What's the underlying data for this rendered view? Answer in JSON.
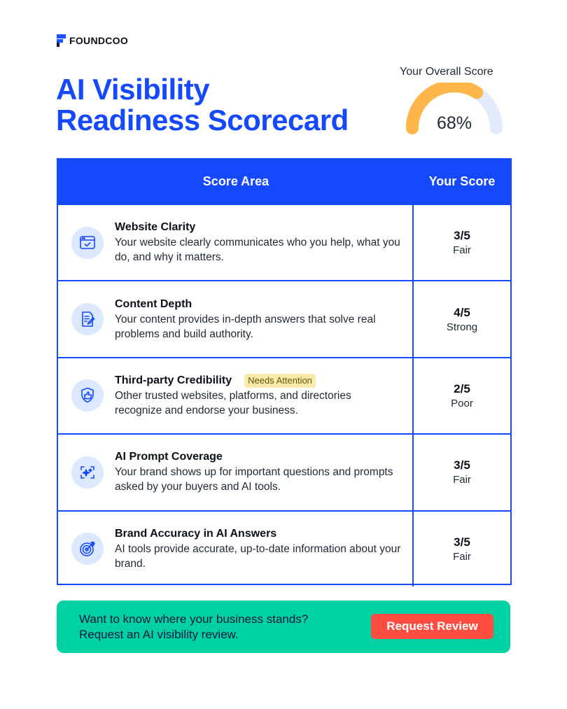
{
  "brand": {
    "name": "FOUNDCOO"
  },
  "title": {
    "line1": "AI Visibility",
    "line2": "Readiness Scorecard"
  },
  "overall": {
    "label": "Your Overall Score",
    "value_text": "68%",
    "value": 0.68,
    "fill_color": "#ffb547",
    "track_color": "#e3eafc"
  },
  "table": {
    "headers": {
      "area": "Score Area",
      "score": "Your Score"
    },
    "rows": [
      {
        "icon": "browser-check-icon",
        "title": "Website Clarity",
        "badge": "",
        "description": "Your website clearly communicates who you help, what you do, and why it matters.",
        "score": "3/5",
        "rating": "Fair"
      },
      {
        "icon": "document-edit-icon",
        "title": "Content Depth",
        "badge": "",
        "description": "Your content provides in-depth answers that solve real problems and build authority.",
        "score": "4/5",
        "rating": "Strong"
      },
      {
        "icon": "shield-thumbs-up-icon",
        "title": "Third-party Credibility",
        "badge": "Needs Attention",
        "description": "Other trusted websites, platforms, and directories recognize and endorse your business.",
        "score": "2/5",
        "rating": "Poor"
      },
      {
        "icon": "ai-sparkle-icon",
        "title": "AI Prompt Coverage",
        "badge": "",
        "description": "Your brand shows up for important questions and prompts asked by your buyers and AI tools.",
        "score": "3/5",
        "rating": "Fair"
      },
      {
        "icon": "target-icon",
        "title": "Brand Accuracy in AI Answers",
        "badge": "",
        "description": "AI tools provide accurate, up-to-date information about your brand.",
        "score": "3/5",
        "rating": "Fair"
      }
    ]
  },
  "cta": {
    "line1": "Want to know where your business stands?",
    "line2": "Request an AI visibility review.",
    "button": "Request Review"
  },
  "colors": {
    "accent": "#1549ff",
    "cta_bg": "#00d1a4",
    "cta_button": "#ff4d42",
    "badge_bg": "#fbeaa9"
  }
}
